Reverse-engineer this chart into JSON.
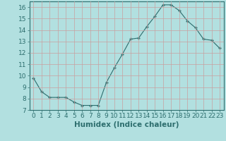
{
  "x": [
    0,
    1,
    2,
    3,
    4,
    5,
    6,
    7,
    8,
    9,
    10,
    11,
    12,
    13,
    14,
    15,
    16,
    17,
    18,
    19,
    20,
    21,
    22,
    23
  ],
  "y": [
    9.8,
    8.6,
    8.1,
    8.1,
    8.1,
    7.7,
    7.4,
    7.4,
    7.4,
    9.4,
    10.7,
    11.9,
    13.2,
    13.3,
    14.3,
    15.2,
    16.2,
    16.2,
    15.7,
    14.8,
    14.2,
    13.2,
    13.1,
    12.4
  ],
  "xlim": [
    -0.5,
    23.5
  ],
  "ylim": [
    7,
    16.5
  ],
  "yticks": [
    7,
    8,
    9,
    10,
    11,
    12,
    13,
    14,
    15,
    16
  ],
  "xticks": [
    0,
    1,
    2,
    3,
    4,
    5,
    6,
    7,
    8,
    9,
    10,
    11,
    12,
    13,
    14,
    15,
    16,
    17,
    18,
    19,
    20,
    21,
    22,
    23
  ],
  "xlabel": "Humidex (Indice chaleur)",
  "line_color": "#2d6e6e",
  "marker": "+",
  "bg_color": "#b2e0e0",
  "grid_color": "#c8a0a0",
  "tick_color": "#2d6e6e",
  "label_color": "#2d6e6e",
  "tick_fontsize": 6.5,
  "xlabel_fontsize": 7.5
}
